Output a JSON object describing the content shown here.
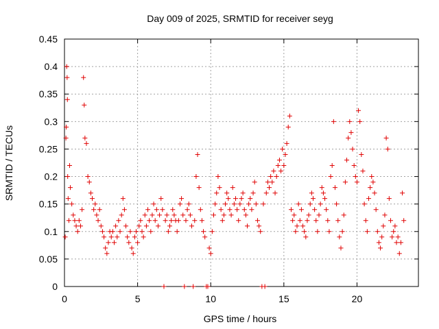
{
  "chart_data": {
    "type": "scatter",
    "title": "Day 009 of 2025, SRMTID for receiver seyg",
    "xlabel": "GPS time / hours",
    "ylabel": "SRMTID / TECUs",
    "xlim": [
      0,
      24.2
    ],
    "ylim": [
      0,
      0.45
    ],
    "xticks": [
      0,
      5,
      10,
      15,
      20
    ],
    "xtick_labels": [
      "0",
      "5",
      "10",
      "15",
      "20"
    ],
    "yticks": [
      0,
      0.05,
      0.1,
      0.15,
      0.2,
      0.25,
      0.3,
      0.35,
      0.4,
      0.45
    ],
    "ytick_labels": [
      "0",
      "0.05",
      "0.1",
      "0.15",
      "0.2",
      "0.25",
      "0.3",
      "0.35",
      "0.4",
      "0.45"
    ],
    "grid": true,
    "marker": "plus",
    "color": "#e00000",
    "series": [
      {
        "name": "SRMTID",
        "points": [
          [
            0.05,
            0.09
          ],
          [
            0.1,
            0.27
          ],
          [
            0.12,
            0.29
          ],
          [
            0.15,
            0.4
          ],
          [
            0.18,
            0.38
          ],
          [
            0.2,
            0.34
          ],
          [
            0.22,
            0.2
          ],
          [
            0.25,
            0.16
          ],
          [
            0.3,
            0.12
          ],
          [
            0.35,
            0.22
          ],
          [
            0.4,
            0.18
          ],
          [
            0.5,
            0.15
          ],
          [
            0.6,
            0.13
          ],
          [
            0.7,
            0.12
          ],
          [
            0.8,
            0.11
          ],
          [
            0.9,
            0.1
          ],
          [
            1.0,
            0.12
          ],
          [
            1.1,
            0.11
          ],
          [
            1.2,
            0.14
          ],
          [
            1.3,
            0.38
          ],
          [
            1.35,
            0.33
          ],
          [
            1.4,
            0.27
          ],
          [
            1.5,
            0.26
          ],
          [
            1.6,
            0.2
          ],
          [
            1.7,
            0.19
          ],
          [
            1.8,
            0.17
          ],
          [
            1.9,
            0.16
          ],
          [
            2.0,
            0.14
          ],
          [
            2.1,
            0.15
          ],
          [
            2.2,
            0.13
          ],
          [
            2.3,
            0.12
          ],
          [
            2.4,
            0.14
          ],
          [
            2.5,
            0.11
          ],
          [
            2.6,
            0.1
          ],
          [
            2.7,
            0.09
          ],
          [
            2.8,
            0.07
          ],
          [
            2.9,
            0.06
          ],
          [
            3.0,
            0.08
          ],
          [
            3.1,
            0.1
          ],
          [
            3.2,
            0.09
          ],
          [
            3.3,
            0.1
          ],
          [
            3.4,
            0.08
          ],
          [
            3.5,
            0.11
          ],
          [
            3.6,
            0.09
          ],
          [
            3.7,
            0.12
          ],
          [
            3.8,
            0.1
          ],
          [
            3.9,
            0.13
          ],
          [
            4.0,
            0.16
          ],
          [
            4.1,
            0.14
          ],
          [
            4.2,
            0.11
          ],
          [
            4.3,
            0.09
          ],
          [
            4.4,
            0.08
          ],
          [
            4.5,
            0.1
          ],
          [
            4.6,
            0.07
          ],
          [
            4.7,
            0.06
          ],
          [
            4.8,
            0.09
          ],
          [
            4.9,
            0.1
          ],
          [
            5.0,
            0.08
          ],
          [
            5.1,
            0.11
          ],
          [
            5.2,
            0.12
          ],
          [
            5.3,
            0.1
          ],
          [
            5.4,
            0.09
          ],
          [
            5.5,
            0.13
          ],
          [
            5.6,
            0.11
          ],
          [
            5.7,
            0.14
          ],
          [
            5.8,
            0.12
          ],
          [
            5.9,
            0.1
          ],
          [
            6.0,
            0.13
          ],
          [
            6.1,
            0.15
          ],
          [
            6.2,
            0.12
          ],
          [
            6.3,
            0.14
          ],
          [
            6.4,
            0.11
          ],
          [
            6.5,
            0.13
          ],
          [
            6.6,
            0.16
          ],
          [
            6.7,
            0.14
          ],
          [
            6.8,
            0.0
          ],
          [
            6.9,
            0.12
          ],
          [
            7.0,
            0.13
          ],
          [
            7.1,
            0.1
          ],
          [
            7.2,
            0.11
          ],
          [
            7.3,
            0.12
          ],
          [
            7.4,
            0.14
          ],
          [
            7.5,
            0.13
          ],
          [
            7.6,
            0.12
          ],
          [
            7.7,
            0.1
          ],
          [
            7.8,
            0.12
          ],
          [
            7.9,
            0.15
          ],
          [
            8.0,
            0.16
          ],
          [
            8.1,
            0.13
          ],
          [
            8.2,
            0.0
          ],
          [
            8.3,
            0.12
          ],
          [
            8.4,
            0.14
          ],
          [
            8.5,
            0.15
          ],
          [
            8.6,
            0.13
          ],
          [
            8.7,
            0.11
          ],
          [
            8.8,
            0.0
          ],
          [
            8.9,
            0.12
          ],
          [
            9.0,
            0.2
          ],
          [
            9.1,
            0.24
          ],
          [
            9.2,
            0.18
          ],
          [
            9.3,
            0.14
          ],
          [
            9.4,
            0.12
          ],
          [
            9.5,
            0.1
          ],
          [
            9.6,
            0.09
          ],
          [
            9.7,
            0.0
          ],
          [
            9.8,
            0.0
          ],
          [
            9.9,
            0.07
          ],
          [
            10.0,
            0.06
          ],
          [
            10.1,
            0.1
          ],
          [
            10.2,
            0.13
          ],
          [
            10.3,
            0.15
          ],
          [
            10.4,
            0.17
          ],
          [
            10.5,
            0.2
          ],
          [
            10.6,
            0.18
          ],
          [
            10.7,
            0.14
          ],
          [
            10.8,
            0.12
          ],
          [
            10.9,
            0.13
          ],
          [
            11.0,
            0.15
          ],
          [
            11.1,
            0.17
          ],
          [
            11.2,
            0.16
          ],
          [
            11.3,
            0.14
          ],
          [
            11.4,
            0.13
          ],
          [
            11.5,
            0.18
          ],
          [
            11.6,
            0.15
          ],
          [
            11.7,
            0.16
          ],
          [
            11.8,
            0.14
          ],
          [
            11.9,
            0.12
          ],
          [
            12.0,
            0.15
          ],
          [
            12.1,
            0.16
          ],
          [
            12.2,
            0.17
          ],
          [
            12.3,
            0.14
          ],
          [
            12.4,
            0.13
          ],
          [
            12.5,
            0.11
          ],
          [
            12.6,
            0.15
          ],
          [
            12.7,
            0.16
          ],
          [
            12.8,
            0.14
          ],
          [
            12.9,
            0.17
          ],
          [
            13.0,
            0.19
          ],
          [
            13.1,
            0.15
          ],
          [
            13.2,
            0.12
          ],
          [
            13.3,
            0.11
          ],
          [
            13.4,
            0.1
          ],
          [
            13.5,
            0.0
          ],
          [
            13.6,
            0.15
          ],
          [
            13.7,
            0.0
          ],
          [
            13.8,
            0.17
          ],
          [
            13.9,
            0.19
          ],
          [
            14.0,
            0.18
          ],
          [
            14.1,
            0.2
          ],
          [
            14.2,
            0.19
          ],
          [
            14.3,
            0.21
          ],
          [
            14.4,
            0.17
          ],
          [
            14.5,
            0.2
          ],
          [
            14.6,
            0.22
          ],
          [
            14.7,
            0.23
          ],
          [
            14.8,
            0.21
          ],
          [
            14.9,
            0.25
          ],
          [
            15.0,
            0.22
          ],
          [
            15.1,
            0.24
          ],
          [
            15.2,
            0.26
          ],
          [
            15.3,
            0.29
          ],
          [
            15.4,
            0.31
          ],
          [
            15.5,
            0.14
          ],
          [
            15.6,
            0.12
          ],
          [
            15.7,
            0.13
          ],
          [
            15.8,
            0.1
          ],
          [
            15.9,
            0.11
          ],
          [
            16.0,
            0.15
          ],
          [
            16.1,
            0.12
          ],
          [
            16.2,
            0.14
          ],
          [
            16.3,
            0.11
          ],
          [
            16.4,
            0.1
          ],
          [
            16.5,
            0.09
          ],
          [
            16.6,
            0.12
          ],
          [
            16.7,
            0.13
          ],
          [
            16.8,
            0.15
          ],
          [
            16.9,
            0.17
          ],
          [
            17.0,
            0.16
          ],
          [
            17.1,
            0.14
          ],
          [
            17.2,
            0.12
          ],
          [
            17.3,
            0.1
          ],
          [
            17.4,
            0.13
          ],
          [
            17.5,
            0.15
          ],
          [
            17.6,
            0.18
          ],
          [
            17.7,
            0.17
          ],
          [
            17.8,
            0.16
          ],
          [
            17.9,
            0.14
          ],
          [
            18.0,
            0.12
          ],
          [
            18.1,
            0.1
          ],
          [
            18.2,
            0.2
          ],
          [
            18.3,
            0.22
          ],
          [
            18.4,
            0.3
          ],
          [
            18.5,
            0.18
          ],
          [
            18.6,
            0.15
          ],
          [
            18.7,
            0.12
          ],
          [
            18.8,
            0.09
          ],
          [
            18.9,
            0.07
          ],
          [
            19.0,
            0.1
          ],
          [
            19.1,
            0.13
          ],
          [
            19.2,
            0.19
          ],
          [
            19.3,
            0.23
          ],
          [
            19.4,
            0.27
          ],
          [
            19.5,
            0.3
          ],
          [
            19.6,
            0.28
          ],
          [
            19.7,
            0.25
          ],
          [
            19.8,
            0.22
          ],
          [
            19.9,
            0.2
          ],
          [
            20.0,
            0.19
          ],
          [
            20.1,
            0.32
          ],
          [
            20.2,
            0.3
          ],
          [
            20.3,
            0.24
          ],
          [
            20.4,
            0.21
          ],
          [
            20.5,
            0.15
          ],
          [
            20.6,
            0.12
          ],
          [
            20.7,
            0.1
          ],
          [
            20.8,
            0.16
          ],
          [
            20.9,
            0.18
          ],
          [
            21.0,
            0.2
          ],
          [
            21.1,
            0.19
          ],
          [
            21.2,
            0.17
          ],
          [
            21.3,
            0.14
          ],
          [
            21.4,
            0.1
          ],
          [
            21.5,
            0.08
          ],
          [
            21.6,
            0.07
          ],
          [
            21.7,
            0.09
          ],
          [
            21.8,
            0.11
          ],
          [
            21.9,
            0.13
          ],
          [
            22.0,
            0.27
          ],
          [
            22.1,
            0.25
          ],
          [
            22.2,
            0.16
          ],
          [
            22.3,
            0.12
          ],
          [
            22.4,
            0.09
          ],
          [
            22.5,
            0.1
          ],
          [
            22.6,
            0.11
          ],
          [
            22.7,
            0.08
          ],
          [
            22.8,
            0.09
          ],
          [
            22.9,
            0.06
          ],
          [
            23.0,
            0.08
          ],
          [
            23.1,
            0.17
          ],
          [
            23.2,
            0.12
          ]
        ]
      }
    ]
  }
}
